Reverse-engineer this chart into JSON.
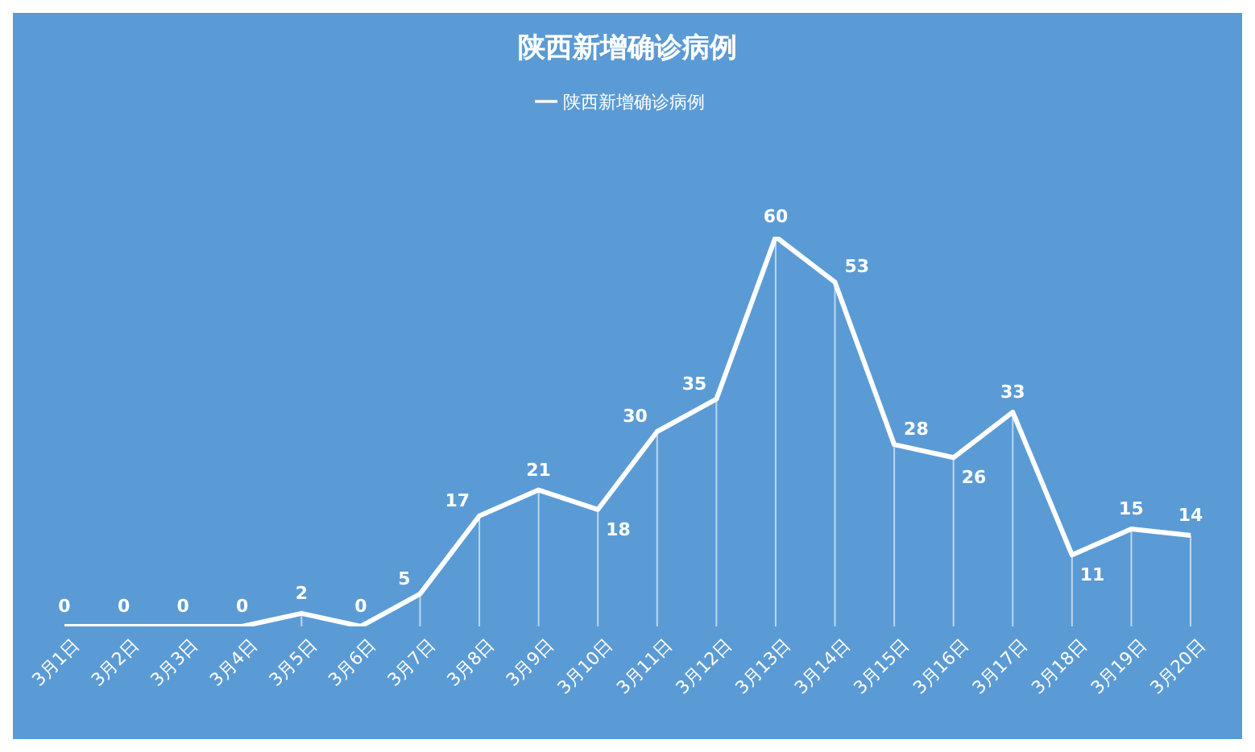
{
  "chart_data": {
    "type": "line",
    "title": "陕西新增确诊病例",
    "categories": [
      "3月1日",
      "3月2日",
      "3月3日",
      "3月4日",
      "3月5日",
      "3月6日",
      "3月7日",
      "3月8日",
      "3月9日",
      "3月10日",
      "3月11日",
      "3月12日",
      "3月13日",
      "3月14日",
      "3月15日",
      "3月16日",
      "3月17日",
      "3月18日",
      "3月19日",
      "3月20日"
    ],
    "series": [
      {
        "name": "陕西新增确诊病例",
        "color": "#ffffff",
        "values": [
          0,
          0,
          0,
          0,
          2,
          0,
          5,
          17,
          21,
          18,
          30,
          35,
          60,
          53,
          28,
          26,
          33,
          11,
          15,
          14
        ]
      }
    ],
    "data_labels": true,
    "legend": "top",
    "grid": "x",
    "marker": "none"
  }
}
